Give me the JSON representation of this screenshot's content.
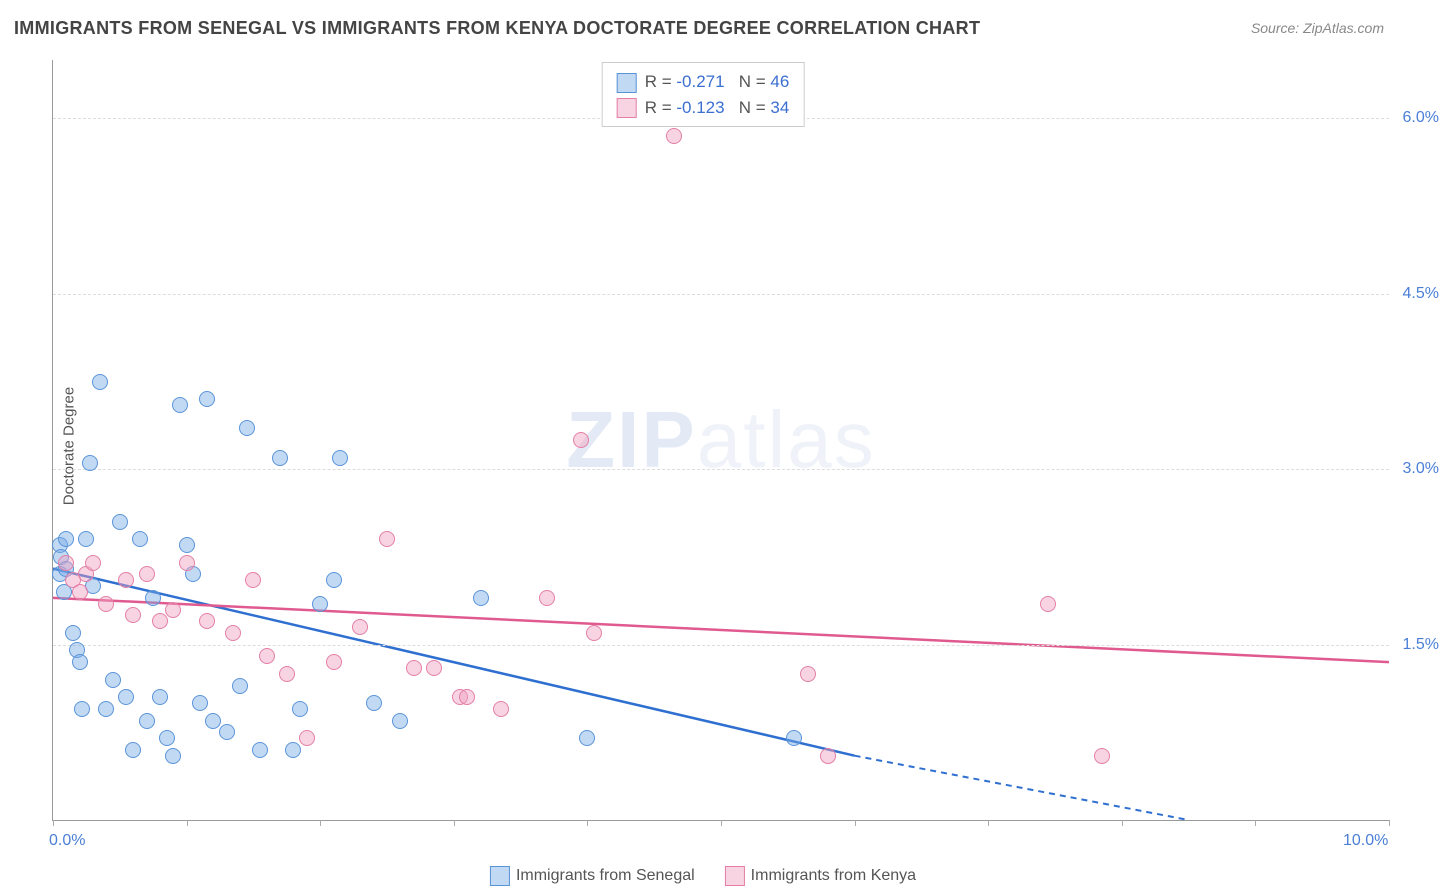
{
  "title": "IMMIGRANTS FROM SENEGAL VS IMMIGRANTS FROM KENYA DOCTORATE DEGREE CORRELATION CHART",
  "source": "Source: ZipAtlas.com",
  "ylabel": "Doctorate Degree",
  "watermark_bold": "ZIP",
  "watermark_rest": "atlas",
  "chart": {
    "type": "scatter",
    "xlim": [
      0,
      10
    ],
    "ylim": [
      0,
      6.5
    ],
    "x_axis_ticks": [
      0,
      1,
      2,
      3,
      4,
      5,
      6,
      7,
      8,
      9,
      10
    ],
    "x_axis_labels": [
      {
        "val": 0,
        "text": "0.0%"
      },
      {
        "val": 10,
        "text": "10.0%"
      }
    ],
    "y_gridlines": [
      1.5,
      3.0,
      4.5,
      6.0
    ],
    "y_tick_labels": [
      "1.5%",
      "3.0%",
      "4.5%",
      "6.0%"
    ],
    "background_color": "#ffffff",
    "grid_color": "#dddddd",
    "axis_color": "#999999",
    "tick_label_color": "#4a7fd6",
    "series": [
      {
        "name": "Immigrants from Senegal",
        "fill": "rgba(120,170,230,0.45)",
        "stroke": "#5a94d8",
        "line_color": "#2e6fd0",
        "R": "-0.271",
        "N": "46",
        "trend": {
          "x1": 0,
          "y1": 2.15,
          "x2": 6.0,
          "y2": 0.55,
          "dash_to_x": 8.5,
          "dash_to_y": 0.0
        },
        "points": [
          [
            0.05,
            2.35
          ],
          [
            0.05,
            2.1
          ],
          [
            0.06,
            2.25
          ],
          [
            0.08,
            1.95
          ],
          [
            0.1,
            2.4
          ],
          [
            0.1,
            2.15
          ],
          [
            0.15,
            1.6
          ],
          [
            0.18,
            1.45
          ],
          [
            0.2,
            1.35
          ],
          [
            0.22,
            0.95
          ],
          [
            0.25,
            2.4
          ],
          [
            0.28,
            3.05
          ],
          [
            0.3,
            2.0
          ],
          [
            0.35,
            3.75
          ],
          [
            0.4,
            0.95
          ],
          [
            0.45,
            1.2
          ],
          [
            0.5,
            2.55
          ],
          [
            0.55,
            1.05
          ],
          [
            0.6,
            0.6
          ],
          [
            0.65,
            2.4
          ],
          [
            0.7,
            0.85
          ],
          [
            0.75,
            1.9
          ],
          [
            0.8,
            1.05
          ],
          [
            0.85,
            0.7
          ],
          [
            0.9,
            0.55
          ],
          [
            0.95,
            3.55
          ],
          [
            1.0,
            2.35
          ],
          [
            1.05,
            2.1
          ],
          [
            1.1,
            1.0
          ],
          [
            1.15,
            3.6
          ],
          [
            1.2,
            0.85
          ],
          [
            1.3,
            0.75
          ],
          [
            1.4,
            1.15
          ],
          [
            1.45,
            3.35
          ],
          [
            1.55,
            0.6
          ],
          [
            1.7,
            3.1
          ],
          [
            1.8,
            0.6
          ],
          [
            1.85,
            0.95
          ],
          [
            2.0,
            1.85
          ],
          [
            2.1,
            2.05
          ],
          [
            2.15,
            3.1
          ],
          [
            2.4,
            1.0
          ],
          [
            2.6,
            0.85
          ],
          [
            3.2,
            1.9
          ],
          [
            4.0,
            0.7
          ],
          [
            5.55,
            0.7
          ]
        ]
      },
      {
        "name": "Immigrants from Kenya",
        "fill": "rgba(240,160,190,0.45)",
        "stroke": "#e37fa5",
        "line_color": "#e05a8f",
        "R": "-0.123",
        "N": "34",
        "trend": {
          "x1": 0,
          "y1": 1.9,
          "x2": 10.0,
          "y2": 1.35
        },
        "points": [
          [
            0.1,
            2.2
          ],
          [
            0.15,
            2.05
          ],
          [
            0.2,
            1.95
          ],
          [
            0.25,
            2.1
          ],
          [
            0.3,
            2.2
          ],
          [
            0.4,
            1.85
          ],
          [
            0.55,
            2.05
          ],
          [
            0.6,
            1.75
          ],
          [
            0.7,
            2.1
          ],
          [
            0.8,
            1.7
          ],
          [
            0.9,
            1.8
          ],
          [
            1.0,
            2.2
          ],
          [
            1.15,
            1.7
          ],
          [
            1.35,
            1.6
          ],
          [
            1.5,
            2.05
          ],
          [
            1.6,
            1.4
          ],
          [
            1.75,
            1.25
          ],
          [
            1.9,
            0.7
          ],
          [
            2.1,
            1.35
          ],
          [
            2.3,
            1.65
          ],
          [
            2.5,
            2.4
          ],
          [
            2.7,
            1.3
          ],
          [
            2.85,
            1.3
          ],
          [
            3.05,
            1.05
          ],
          [
            3.1,
            1.05
          ],
          [
            3.35,
            0.95
          ],
          [
            3.7,
            1.9
          ],
          [
            3.95,
            3.25
          ],
          [
            4.05,
            1.6
          ],
          [
            4.65,
            5.85
          ],
          [
            5.65,
            1.25
          ],
          [
            5.8,
            0.55
          ],
          [
            7.45,
            1.85
          ],
          [
            7.85,
            0.55
          ]
        ]
      }
    ]
  },
  "legend_bottom": [
    {
      "label": "Immigrants from Senegal",
      "fill": "rgba(120,170,230,0.45)",
      "stroke": "#5a94d8"
    },
    {
      "label": "Immigrants from Kenya",
      "fill": "rgba(240,160,190,0.45)",
      "stroke": "#e37fa5"
    }
  ]
}
